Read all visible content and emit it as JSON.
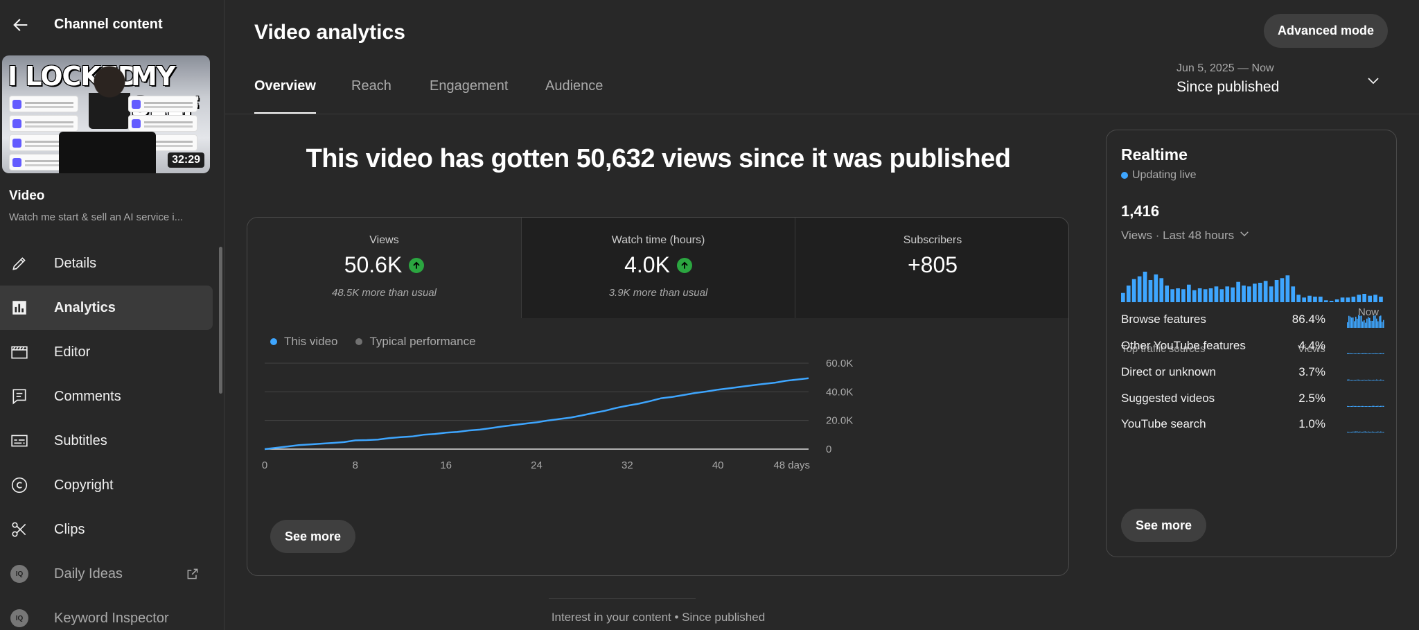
{
  "sidebar": {
    "title": "Channel content",
    "thumbnail": {
      "line1": "I LOCKED",
      "line2": "MY SELF",
      "duration": "32:29"
    },
    "video_label": "Video",
    "video_desc": "Watch me start & sell an AI service i...",
    "items": [
      {
        "label": "Details",
        "icon": "pencil-icon",
        "active": false
      },
      {
        "label": "Analytics",
        "icon": "bar-chart-icon",
        "active": true
      },
      {
        "label": "Editor",
        "icon": "clapperboard-icon",
        "active": false
      },
      {
        "label": "Comments",
        "icon": "comment-icon",
        "active": false
      },
      {
        "label": "Subtitles",
        "icon": "subtitles-icon",
        "active": false
      },
      {
        "label": "Copyright",
        "icon": "copyright-icon",
        "active": false
      },
      {
        "label": "Clips",
        "icon": "scissors-icon",
        "active": false
      },
      {
        "label": "Daily Ideas",
        "icon": "iq-badge-icon",
        "active": false,
        "external": true
      },
      {
        "label": "Keyword Inspector",
        "icon": "iq-badge-icon",
        "active": false
      }
    ]
  },
  "header": {
    "title": "Video analytics",
    "advanced_button": "Advanced mode",
    "tabs": [
      "Overview",
      "Reach",
      "Engagement",
      "Audience"
    ],
    "active_tab": "Overview",
    "date_range": {
      "sub": "Jun 5, 2025 — Now",
      "main": "Since published"
    }
  },
  "headline": "This video has gotten 50,632 views since it was published",
  "metrics": [
    {
      "label": "Views",
      "value": "50.6K",
      "trend": "up",
      "sub": "48.5K more than usual"
    },
    {
      "label": "Watch time (hours)",
      "value": "4.0K",
      "trend": "up",
      "sub": "3.9K more than usual"
    },
    {
      "label": "Subscribers",
      "value": "+805",
      "trend": "",
      "sub": ""
    }
  ],
  "chart_data": {
    "type": "line",
    "series": [
      {
        "name": "This video",
        "color": "#3ea6ff",
        "x": [
          0,
          1,
          2,
          3,
          4,
          5,
          6,
          7,
          8,
          9,
          10,
          11,
          12,
          13,
          14,
          15,
          16,
          17,
          18,
          19,
          20,
          21,
          22,
          23,
          24,
          25,
          26,
          27,
          28,
          29,
          30,
          31,
          32,
          33,
          34,
          35,
          36,
          37,
          38,
          39,
          40,
          41,
          42,
          43,
          44,
          45,
          46,
          47,
          48
        ],
        "values": [
          0,
          900,
          1800,
          2800,
          3300,
          3800,
          4300,
          4900,
          6100,
          6300,
          6700,
          7700,
          8300,
          8800,
          10000,
          10500,
          11500,
          12000,
          13000,
          13600,
          14700,
          15800,
          16800,
          17800,
          18700,
          20000,
          21000,
          22000,
          23500,
          25200,
          26700,
          28700,
          30300,
          31700,
          33500,
          35500,
          36500,
          37800,
          39200,
          40200,
          41500,
          42500,
          43500,
          44500,
          45500,
          46300,
          47700,
          48600,
          49500
        ]
      }
    ],
    "legend": [
      "This video",
      "Typical performance"
    ],
    "legend_placement": "top-left",
    "x_ticks": [
      "0",
      "8",
      "16",
      "24",
      "32",
      "40",
      "48 days"
    ],
    "x_tick_values": [
      0,
      8,
      16,
      24,
      32,
      40,
      48
    ],
    "y_ticks": [
      "0",
      "20.0K",
      "40.0K",
      "60.0K"
    ],
    "y_tick_values": [
      0,
      20000,
      40000,
      60000
    ],
    "xlim": [
      0,
      48
    ],
    "ylim": [
      0,
      60000
    ],
    "grid": true
  },
  "chart_see_more": "See more",
  "realtime": {
    "title": "Realtime",
    "live_text": "Updating live",
    "count": "1,416",
    "period": "Views · Last 48 hours",
    "now_label": "Now",
    "bar_values": [
      10,
      18,
      25,
      28,
      33,
      24,
      30,
      26,
      18,
      14,
      15,
      14,
      19,
      13,
      15,
      14,
      15,
      17,
      14,
      17,
      16,
      22,
      18,
      17,
      20,
      21,
      23,
      17,
      24,
      26,
      29,
      17,
      8,
      5,
      7,
      6,
      6,
      2,
      1,
      3,
      5,
      5,
      6,
      8,
      9,
      7,
      8,
      6
    ],
    "traffic_header": "Top traffic sources",
    "traffic_views_header": "Views",
    "sources": [
      {
        "name": "Browse features",
        "pct": "86.4%",
        "share": 86.4
      },
      {
        "name": "Other YouTube features",
        "pct": "4.4%",
        "share": 4.4
      },
      {
        "name": "Direct or unknown",
        "pct": "3.7%",
        "share": 3.7
      },
      {
        "name": "Suggested videos",
        "pct": "2.5%",
        "share": 2.5
      },
      {
        "name": "YouTube search",
        "pct": "1.0%",
        "share": 1.0
      }
    ],
    "see_more": "See more"
  },
  "bottom_text": "Interest in your content • Since published",
  "colors": {
    "accent": "#3ea6ff",
    "typical": "#717171",
    "trend_up": "#2ba640"
  }
}
